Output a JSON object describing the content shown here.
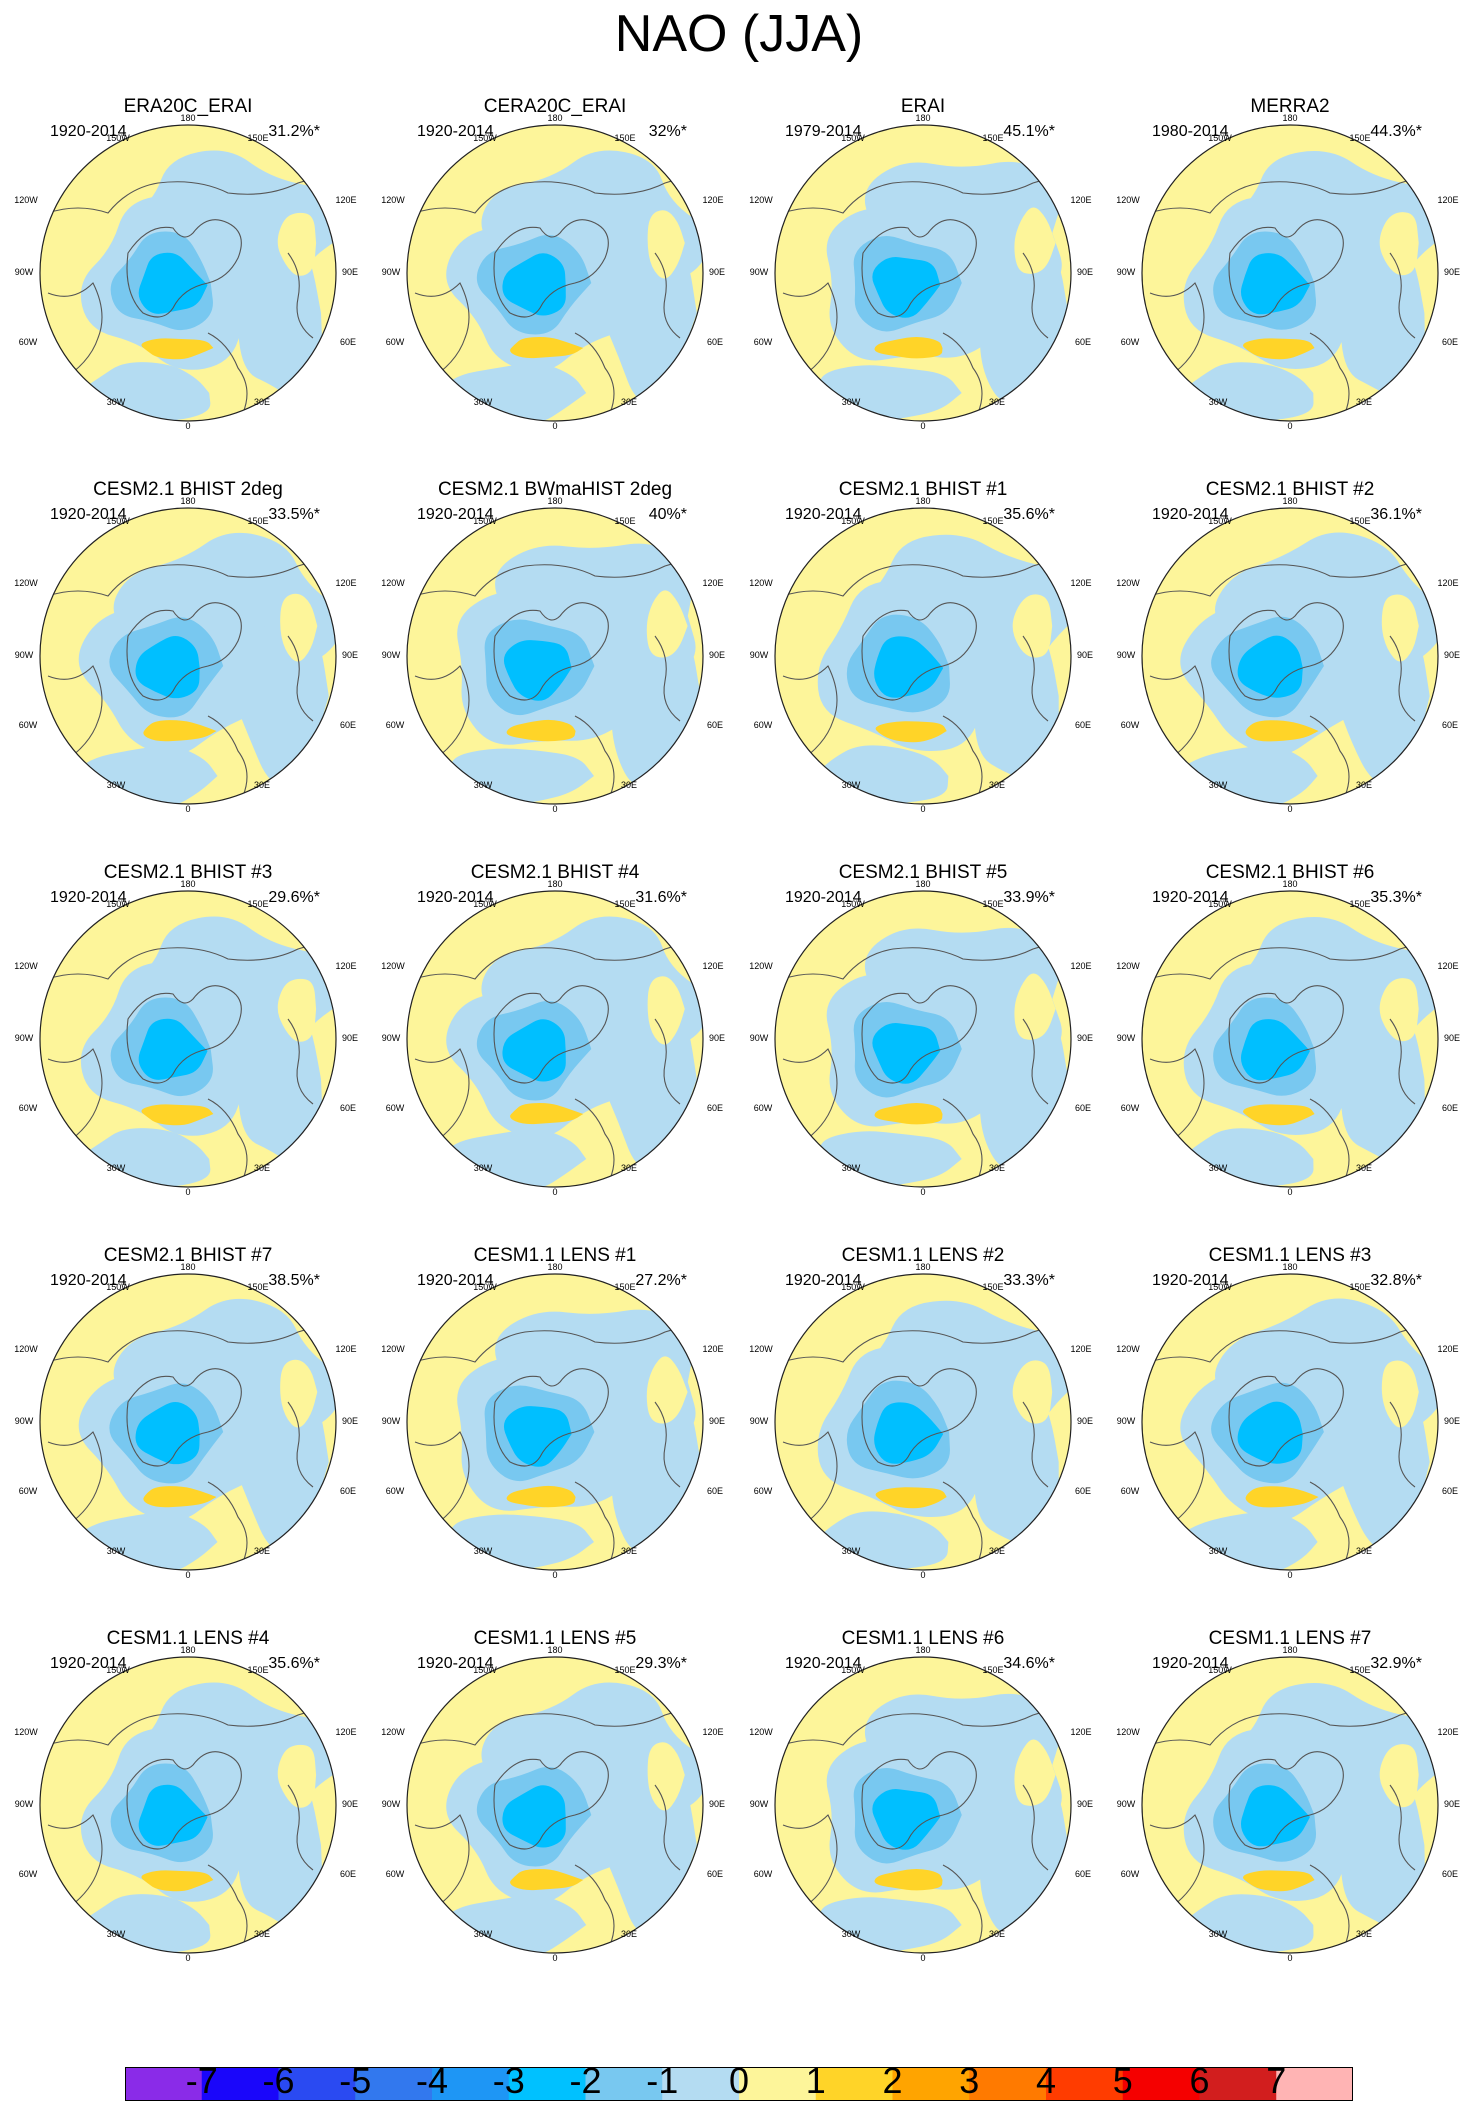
{
  "title": "NAO (JJA)",
  "colors": {
    "land_outline": "#555555",
    "circle_outline": "#222222",
    "neg_1": "#b4dcf2",
    "neg_2": "#78c8f0",
    "neg_3": "#00bfff",
    "pos_1": "#fdf59a",
    "pos_2": "#ffd428"
  },
  "lon_labels": [
    "180",
    "150W",
    "150E",
    "120W",
    "120E",
    "90W",
    "90E",
    "60W",
    "60E",
    "30W",
    "30E",
    "0"
  ],
  "panels": [
    {
      "title": "ERA20C_ERAI",
      "years": "1920-2014",
      "percent": "31.2%*",
      "variant": 0
    },
    {
      "title": "CERA20C_ERAI",
      "years": "1920-2014",
      "percent": "32%*",
      "variant": 1
    },
    {
      "title": "ERAI",
      "years": "1979-2014",
      "percent": "45.1%*",
      "variant": 2
    },
    {
      "title": "MERRA2",
      "years": "1980-2014",
      "percent": "44.3%*",
      "variant": 3
    },
    {
      "title": "CESM2.1 BHIST 2deg",
      "years": "1920-2014",
      "percent": "33.5%*",
      "variant": 4
    },
    {
      "title": "CESM2.1 BWmaHIST 2deg",
      "years": "1920-2014",
      "percent": "40%*",
      "variant": 5
    },
    {
      "title": "CESM2.1 BHIST #1",
      "years": "1920-2014",
      "percent": "35.6%*",
      "variant": 6
    },
    {
      "title": "CESM2.1 BHIST #2",
      "years": "1920-2014",
      "percent": "36.1%*",
      "variant": 7
    },
    {
      "title": "CESM2.1 BHIST #3",
      "years": "1920-2014",
      "percent": "29.6%*",
      "variant": 0
    },
    {
      "title": "CESM2.1 BHIST #4",
      "years": "1920-2014",
      "percent": "31.6%*",
      "variant": 1
    },
    {
      "title": "CESM2.1 BHIST #5",
      "years": "1920-2014",
      "percent": "33.9%*",
      "variant": 2
    },
    {
      "title": "CESM2.1 BHIST #6",
      "years": "1920-2014",
      "percent": "35.3%*",
      "variant": 3
    },
    {
      "title": "CESM2.1 BHIST #7",
      "years": "1920-2014",
      "percent": "38.5%*",
      "variant": 4
    },
    {
      "title": "CESM1.1 LENS #1",
      "years": "1920-2014",
      "percent": "27.2%*",
      "variant": 5
    },
    {
      "title": "CESM1.1 LENS #2",
      "years": "1920-2014",
      "percent": "33.3%*",
      "variant": 6
    },
    {
      "title": "CESM1.1 LENS #3",
      "years": "1920-2014",
      "percent": "32.8%*",
      "variant": 7
    },
    {
      "title": "CESM1.1 LENS #4",
      "years": "1920-2014",
      "percent": "35.6%*",
      "variant": 0
    },
    {
      "title": "CESM1.1 LENS #5",
      "years": "1920-2014",
      "percent": "29.3%*",
      "variant": 1
    },
    {
      "title": "CESM1.1 LENS #6",
      "years": "1920-2014",
      "percent": "34.6%*",
      "variant": 2
    },
    {
      "title": "CESM1.1 LENS #7",
      "years": "1920-2014",
      "percent": "32.9%*",
      "variant": 3
    }
  ],
  "colorbar": {
    "labels": [
      "-7",
      "-6",
      "-5",
      "-4",
      "-3",
      "-2",
      "-1",
      "0",
      "1",
      "2",
      "3",
      "4",
      "5",
      "6",
      "7"
    ],
    "colors": [
      "#8a2be8",
      "#1a06fa",
      "#2a4af2",
      "#3278ee",
      "#1e96f5",
      "#00c1ff",
      "#78c8f0",
      "#b4dcf2",
      "#fdf59a",
      "#ffd428",
      "#ffa400",
      "#ff7a00",
      "#ff3c00",
      "#f50000",
      "#d21e1e",
      "#ffb4b4"
    ]
  }
}
